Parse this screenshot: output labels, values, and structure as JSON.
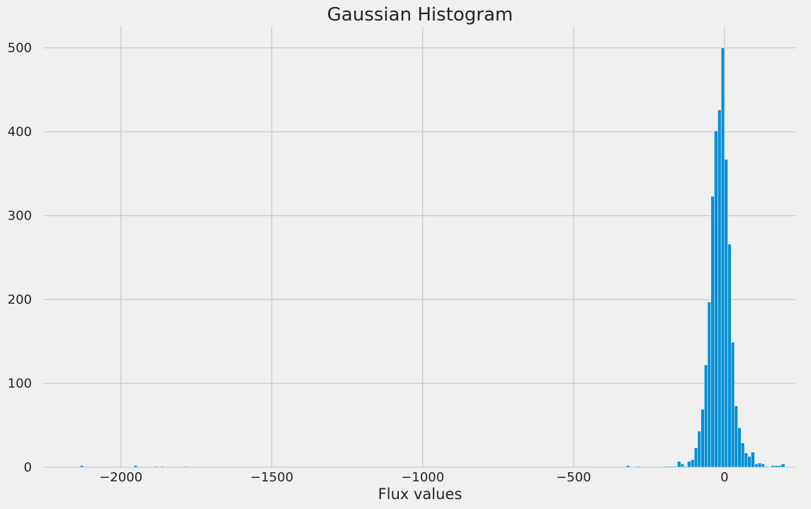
{
  "chart_data": {
    "type": "bar",
    "title": "Gaussian Histogram",
    "xlabel": "Flux values",
    "ylabel": "",
    "xlim": [
      -2255,
      235
    ],
    "ylim": [
      0,
      525
    ],
    "grid": true,
    "bar_color": "#008fd5",
    "bar_edge_color": "#f0f0f0",
    "background_color": "#f0f0f0",
    "grid_color": "#cbcbcb",
    "bin_width": 11.1,
    "x_ticks": [
      {
        "value": -2000,
        "label": "−2000"
      },
      {
        "value": -1500,
        "label": "−1500"
      },
      {
        "value": -1000,
        "label": "−1000"
      },
      {
        "value": -500,
        "label": "−500"
      },
      {
        "value": 0,
        "label": "0"
      }
    ],
    "y_ticks": [
      {
        "value": 0,
        "label": "0"
      },
      {
        "value": 100,
        "label": "100"
      },
      {
        "value": 200,
        "label": "200"
      },
      {
        "value": 300,
        "label": "300"
      },
      {
        "value": 400,
        "label": "400"
      },
      {
        "value": 500,
        "label": "500"
      }
    ],
    "bins": [
      {
        "x0": -2135,
        "x1": -2124,
        "count": 2
      },
      {
        "x0": -1957,
        "x1": -1946,
        "count": 2
      },
      {
        "x0": -1890,
        "x1": -1879,
        "count": 1
      },
      {
        "x0": -1868,
        "x1": -1857,
        "count": 1
      },
      {
        "x0": -1790,
        "x1": -1779,
        "count": 1
      },
      {
        "x0": -325,
        "x1": -314,
        "count": 2
      },
      {
        "x0": -291,
        "x1": -280,
        "count": 1
      },
      {
        "x0": -200,
        "x1": -189,
        "count": 1
      },
      {
        "x0": -189,
        "x1": -178,
        "count": 1
      },
      {
        "x0": -178,
        "x1": -167,
        "count": 1
      },
      {
        "x0": -167,
        "x1": -156,
        "count": 1
      },
      {
        "x0": -156,
        "x1": -145,
        "count": 7
      },
      {
        "x0": -145,
        "x1": -134,
        "count": 4
      },
      {
        "x0": -134,
        "x1": -123,
        "count": 1
      },
      {
        "x0": -123,
        "x1": -111,
        "count": 7
      },
      {
        "x0": -111,
        "x1": -100,
        "count": 9
      },
      {
        "x0": -100,
        "x1": -89,
        "count": 23
      },
      {
        "x0": -89,
        "x1": -78,
        "count": 43
      },
      {
        "x0": -78,
        "x1": -67,
        "count": 69
      },
      {
        "x0": -67,
        "x1": -56,
        "count": 122
      },
      {
        "x0": -56,
        "x1": -45,
        "count": 197
      },
      {
        "x0": -45,
        "x1": -34,
        "count": 323
      },
      {
        "x0": -34,
        "x1": -22,
        "count": 401
      },
      {
        "x0": -22,
        "x1": -11,
        "count": 426
      },
      {
        "x0": -11,
        "x1": 0,
        "count": 500
      },
      {
        "x0": 0,
        "x1": 11,
        "count": 367
      },
      {
        "x0": 11,
        "x1": 22,
        "count": 266
      },
      {
        "x0": 22,
        "x1": 33,
        "count": 149
      },
      {
        "x0": 33,
        "x1": 44,
        "count": 73
      },
      {
        "x0": 44,
        "x1": 55,
        "count": 47
      },
      {
        "x0": 55,
        "x1": 66,
        "count": 29
      },
      {
        "x0": 66,
        "x1": 77,
        "count": 17
      },
      {
        "x0": 77,
        "x1": 88,
        "count": 13
      },
      {
        "x0": 88,
        "x1": 100,
        "count": 18
      },
      {
        "x0": 100,
        "x1": 111,
        "count": 4
      },
      {
        "x0": 111,
        "x1": 122,
        "count": 5
      },
      {
        "x0": 122,
        "x1": 133,
        "count": 4
      },
      {
        "x0": 133,
        "x1": 144,
        "count": 1
      },
      {
        "x0": 155,
        "x1": 166,
        "count": 2
      },
      {
        "x0": 166,
        "x1": 177,
        "count": 2
      },
      {
        "x0": 177,
        "x1": 188,
        "count": 2
      },
      {
        "x0": 188,
        "x1": 200,
        "count": 4
      }
    ]
  }
}
